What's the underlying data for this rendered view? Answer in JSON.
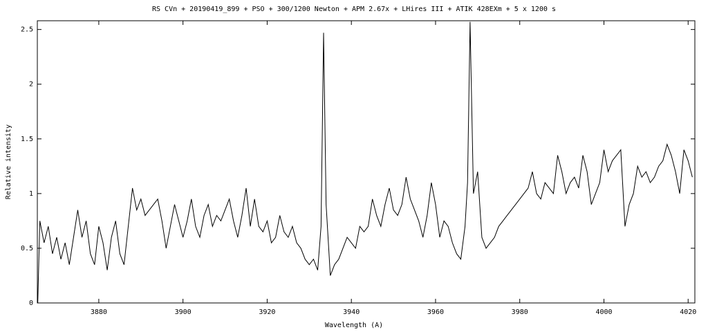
{
  "chart_data": {
    "type": "line",
    "title": "RS CVn + 20190419_899 + PSO + 300/1200 Newton + APM 2.67x + LHires III + ATIK 428EXm + 5 x 1200 s",
    "x_label": "Wavelength (A)",
    "y_label": "Relative intensity",
    "xlim": [
      3865.4,
      4021.6
    ],
    "ylim": [
      0,
      2.58
    ],
    "xticks": [
      3880,
      3900,
      3920,
      3940,
      3960,
      3980,
      4000,
      4020
    ],
    "yticks": [
      0,
      0.5,
      1,
      1.5,
      2,
      2.5
    ],
    "grid": false,
    "series": [
      {
        "color": "#000000",
        "x": [
          3865.5,
          3866,
          3867,
          3868,
          3869,
          3870,
          3871,
          3872,
          3873,
          3874,
          3875,
          3876,
          3877,
          3878,
          3879,
          3880,
          3881,
          3882,
          3883,
          3884,
          3885,
          3886,
          3887,
          3888,
          3889,
          3890,
          3891,
          3892,
          3893,
          3894,
          3895,
          3896,
          3897,
          3898,
          3899,
          3900,
          3901,
          3902,
          3903,
          3904,
          3905,
          3906,
          3907,
          3908,
          3909,
          3910,
          3911,
          3912,
          3913,
          3914,
          3915,
          3916,
          3917,
          3918,
          3919,
          3920,
          3921,
          3922,
          3923,
          3924,
          3925,
          3926,
          3927,
          3928,
          3929,
          3930,
          3931,
          3932,
          3932.8,
          3933.4,
          3934,
          3935,
          3936,
          3937,
          3938,
          3939,
          3940,
          3941,
          3942,
          3943,
          3944,
          3945,
          3946,
          3947,
          3948,
          3949,
          3950,
          3951,
          3952,
          3953,
          3954,
          3955,
          3956,
          3957,
          3958,
          3959,
          3960,
          3961,
          3962,
          3963,
          3964,
          3965,
          3966,
          3967,
          3967.6,
          3968.2,
          3969,
          3970,
          3971,
          3972,
          3973,
          3974,
          3975,
          3976,
          3977,
          3978,
          3979,
          3980,
          3981,
          3982,
          3983,
          3984,
          3985,
          3986,
          3987,
          3988,
          3989,
          3990,
          3991,
          3992,
          3993,
          3994,
          3995,
          3996,
          3997,
          3998,
          3999,
          4000,
          4001,
          4002,
          4003,
          4004,
          4005,
          4006,
          4007,
          4008,
          4009,
          4010,
          4011,
          4012,
          4013,
          4014,
          4015,
          4016,
          4017,
          4018,
          4019,
          4020,
          4021
        ],
        "values": [
          0.0,
          0.75,
          0.55,
          0.7,
          0.45,
          0.6,
          0.4,
          0.55,
          0.35,
          0.6,
          0.85,
          0.6,
          0.75,
          0.45,
          0.35,
          0.7,
          0.55,
          0.3,
          0.6,
          0.75,
          0.45,
          0.35,
          0.7,
          1.05,
          0.85,
          0.95,
          0.8,
          0.85,
          0.9,
          0.95,
          0.75,
          0.5,
          0.7,
          0.9,
          0.75,
          0.6,
          0.75,
          0.95,
          0.7,
          0.6,
          0.8,
          0.9,
          0.7,
          0.8,
          0.75,
          0.85,
          0.95,
          0.75,
          0.6,
          0.8,
          1.05,
          0.7,
          0.95,
          0.7,
          0.65,
          0.75,
          0.55,
          0.6,
          0.8,
          0.65,
          0.6,
          0.7,
          0.55,
          0.5,
          0.4,
          0.35,
          0.4,
          0.3,
          0.7,
          2.47,
          0.9,
          0.25,
          0.35,
          0.4,
          0.5,
          0.6,
          0.55,
          0.5,
          0.7,
          0.65,
          0.7,
          0.95,
          0.8,
          0.7,
          0.9,
          1.05,
          0.85,
          0.8,
          0.9,
          1.15,
          0.95,
          0.85,
          0.75,
          0.6,
          0.8,
          1.1,
          0.9,
          0.6,
          0.75,
          0.7,
          0.55,
          0.45,
          0.4,
          0.7,
          1.1,
          2.57,
          1.0,
          1.2,
          0.6,
          0.5,
          0.55,
          0.6,
          0.7,
          0.75,
          0.8,
          0.85,
          0.9,
          0.95,
          1.0,
          1.05,
          1.2,
          1.0,
          0.95,
          1.1,
          1.05,
          1.0,
          1.35,
          1.2,
          1.0,
          1.1,
          1.15,
          1.05,
          1.35,
          1.2,
          0.9,
          1.0,
          1.1,
          1.4,
          1.2,
          1.3,
          1.35,
          1.4,
          0.7,
          0.9,
          1.0,
          1.25,
          1.15,
          1.2,
          1.1,
          1.15,
          1.25,
          1.3,
          1.45,
          1.35,
          1.2,
          1.0,
          1.4,
          1.3,
          1.15
        ]
      }
    ]
  }
}
